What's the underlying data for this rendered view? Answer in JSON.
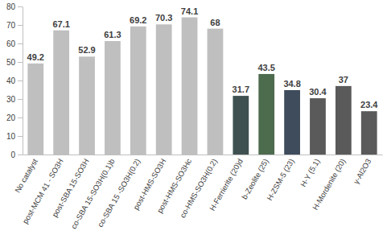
{
  "chart_data": {
    "type": "bar",
    "categories": [
      "No catalyst",
      "post-MCM 41 - SO3H",
      "post-SBA 15-SO3H",
      "co-SBA 15-SO3H(0.1)b",
      "co-SBA 15 -SO3H(0.2)",
      "post-HMS-SO3H",
      "post-HMS-SO3Hc",
      "co-HMS-SO3H(0.2)",
      "H-Ferrierite (20)d",
      "b-Zeolite (25)",
      "H-ZSM-5 (23)",
      "H-Y (5.1)",
      "H-Mordenite (20)",
      "γ-Al2O3"
    ],
    "values": [
      49.2,
      67.1,
      52.9,
      61.3,
      69.2,
      70.3,
      74.1,
      68,
      31.7,
      43.5,
      34.8,
      30.4,
      37,
      23.4
    ],
    "colors": [
      "#bfbfbf",
      "#bfbfbf",
      "#bfbfbf",
      "#bfbfbf",
      "#bfbfbf",
      "#bfbfbf",
      "#bfbfbf",
      "#bfbfbf",
      "#3f5050",
      "#4d6b4d",
      "#3e4c5c",
      "#5a5a5a",
      "#5a5a5a",
      "#5a5a5a"
    ],
    "ylim": [
      0,
      80
    ],
    "yticks": [
      0,
      10,
      20,
      30,
      40,
      50,
      60,
      70,
      80
    ],
    "grid": false,
    "data_labels": true
  }
}
